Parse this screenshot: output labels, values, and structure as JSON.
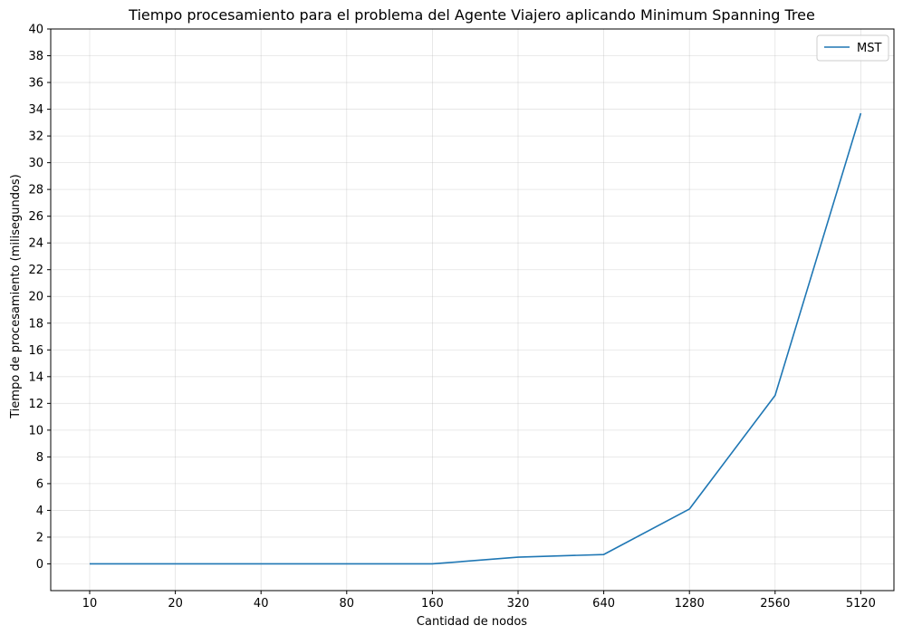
{
  "chart_data": {
    "type": "line",
    "title": "Tiempo procesamiento para el problema del Agente Viajero aplicando Minimum Spanning Tree",
    "xlabel": "Cantidad de nodos",
    "ylabel": "Tiempo de procesamiento (milisegundos)",
    "categories": [
      "10",
      "20",
      "40",
      "80",
      "160",
      "320",
      "640",
      "1280",
      "2560",
      "5120"
    ],
    "series": [
      {
        "name": "MST",
        "color": "#1f77b4",
        "values": [
          0,
          0,
          0,
          0,
          0,
          0.5,
          0.7,
          4.1,
          12.6,
          33.7
        ]
      }
    ],
    "ylim": [
      -2,
      40
    ],
    "yticks": [
      0,
      2,
      4,
      6,
      8,
      10,
      12,
      14,
      16,
      18,
      20,
      22,
      24,
      26,
      28,
      30,
      32,
      34,
      36,
      38,
      40
    ],
    "grid": true,
    "legend": "top-right"
  }
}
